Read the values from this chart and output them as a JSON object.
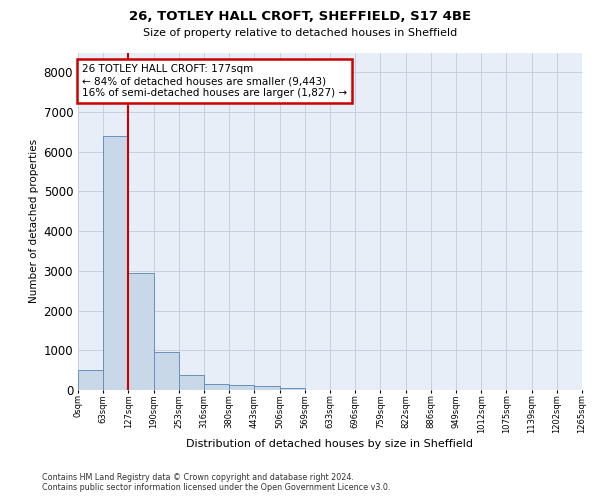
{
  "title_line1": "26, TOTLEY HALL CROFT, SHEFFIELD, S17 4BE",
  "title_line2": "Size of property relative to detached houses in Sheffield",
  "xlabel": "Distribution of detached houses by size in Sheffield",
  "ylabel": "Number of detached properties",
  "bar_values": [
    500,
    6400,
    2950,
    950,
    380,
    160,
    130,
    100,
    60,
    0,
    0,
    0,
    0,
    0,
    0,
    0,
    0,
    0,
    0,
    0
  ],
  "bar_labels": [
    "0sqm",
    "63sqm",
    "127sqm",
    "190sqm",
    "253sqm",
    "316sqm",
    "380sqm",
    "443sqm",
    "506sqm",
    "569sqm",
    "633sqm",
    "696sqm",
    "759sqm",
    "822sqm",
    "886sqm",
    "949sqm",
    "1012sqm",
    "1075sqm",
    "1139sqm",
    "1202sqm",
    "1265sqm"
  ],
  "ylim": [
    0,
    8500
  ],
  "yticks": [
    0,
    1000,
    2000,
    3000,
    4000,
    5000,
    6000,
    7000,
    8000
  ],
  "bar_color": "#c8d8e8",
  "bar_edge_color": "#6690bb",
  "vline_x": 2.0,
  "vline_color": "#cc0000",
  "annotation_text": "26 TOTLEY HALL CROFT: 177sqm\n← 84% of detached houses are smaller (9,443)\n16% of semi-detached houses are larger (1,827) →",
  "annotation_box_color": "#cc0000",
  "grid_color": "#c8d0e0",
  "background_color": "#e8eef8",
  "footnote": "Contains HM Land Registry data © Crown copyright and database right 2024.\nContains public sector information licensed under the Open Government Licence v3.0."
}
